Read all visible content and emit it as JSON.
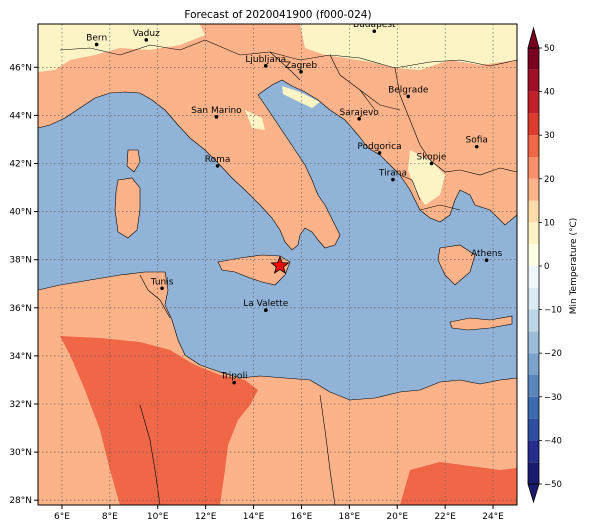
{
  "title": "Forecast of 2020041900 (f000-024)",
  "map": {
    "lon_range": [
      5,
      25
    ],
    "lat_range": [
      27.8,
      47.8
    ],
    "x_ticks": [
      "6°E",
      "8°E",
      "10°E",
      "12°E",
      "14°E",
      "16°E",
      "18°E",
      "20°E",
      "22°E",
      "24°E"
    ],
    "y_ticks": [
      "28°N",
      "30°N",
      "32°N",
      "34°N",
      "36°N",
      "38°N",
      "40°N",
      "42°N",
      "44°N",
      "46°N"
    ],
    "gridlines": true,
    "sea_color": "#91b3d7",
    "cities": [
      {
        "name": "Bern",
        "lon": 7.45,
        "lat": 46.95
      },
      {
        "name": "Vaduz",
        "lon": 9.52,
        "lat": 47.14
      },
      {
        "name": "Budapest",
        "lon": 19.04,
        "lat": 47.5
      },
      {
        "name": "Ljubljana",
        "lon": 14.51,
        "lat": 46.06
      },
      {
        "name": "Zagreb",
        "lon": 15.98,
        "lat": 45.81
      },
      {
        "name": "Belgrade",
        "lon": 20.46,
        "lat": 44.79
      },
      {
        "name": "San Marino",
        "lon": 12.45,
        "lat": 43.94
      },
      {
        "name": "Sarajevo",
        "lon": 18.41,
        "lat": 43.86
      },
      {
        "name": "Sofia",
        "lon": 23.32,
        "lat": 42.7
      },
      {
        "name": "Podgorica",
        "lon": 19.26,
        "lat": 42.44
      },
      {
        "name": "Skopje",
        "lon": 21.43,
        "lat": 42.0
      },
      {
        "name": "Roma",
        "lon": 12.5,
        "lat": 41.9
      },
      {
        "name": "Tirana",
        "lon": 19.82,
        "lat": 41.33
      },
      {
        "name": "Athens",
        "lon": 23.73,
        "lat": 37.98
      },
      {
        "name": "Tunis",
        "lon": 10.18,
        "lat": 36.81
      },
      {
        "name": "La Valette",
        "lon": 14.51,
        "lat": 35.9
      },
      {
        "name": "Tripoli",
        "lon": 13.19,
        "lat": 32.89
      }
    ],
    "marker": {
      "symbol": "star",
      "lon": 15.1,
      "lat": 37.75,
      "color": "#ff0000"
    }
  },
  "colorbar": {
    "label": "Min Temperature (°C)",
    "ticks": [
      "−50",
      "−40",
      "−30",
      "−20",
      "−10",
      "0",
      "10",
      "20",
      "30",
      "40",
      "50"
    ],
    "bands": [
      {
        "from": -50,
        "to": -45,
        "color": "#1a1a6e"
      },
      {
        "from": -45,
        "to": -40,
        "color": "#262c8c"
      },
      {
        "from": -40,
        "to": -35,
        "color": "#2f4ea1"
      },
      {
        "from": -35,
        "to": -30,
        "color": "#3c6aae"
      },
      {
        "from": -30,
        "to": -25,
        "color": "#5a86bd"
      },
      {
        "from": -25,
        "to": -20,
        "color": "#7ba3cd"
      },
      {
        "from": -20,
        "to": -15,
        "color": "#9dbcd9"
      },
      {
        "from": -15,
        "to": -10,
        "color": "#bcd5e7"
      },
      {
        "from": -10,
        "to": -5,
        "color": "#d9eaf2"
      },
      {
        "from": -5,
        "to": 0,
        "color": "#eff8fb"
      },
      {
        "from": 0,
        "to": 5,
        "color": "#ffffe6"
      },
      {
        "from": 5,
        "to": 10,
        "color": "#fdf4c6"
      },
      {
        "from": 10,
        "to": 15,
        "color": "#fddcaa"
      },
      {
        "from": 15,
        "to": 20,
        "color": "#fcb38a"
      },
      {
        "from": 20,
        "to": 25,
        "color": "#f98f6b"
      },
      {
        "from": 25,
        "to": 30,
        "color": "#f06747"
      },
      {
        "from": 30,
        "to": 35,
        "color": "#dc3c2e"
      },
      {
        "from": 35,
        "to": 40,
        "color": "#c0202a"
      },
      {
        "from": 40,
        "to": 45,
        "color": "#a00f26"
      },
      {
        "from": 45,
        "to": 50,
        "color": "#7a0020"
      }
    ]
  }
}
